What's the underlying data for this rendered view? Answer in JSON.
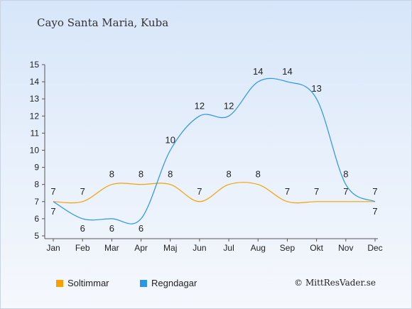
{
  "title": "Cayo Santa Maria, Kuba",
  "credit": "© MittResVader.se",
  "chart_data": {
    "type": "line",
    "categories": [
      "Jan",
      "Feb",
      "Mar",
      "Apr",
      "Maj",
      "Jun",
      "Jul",
      "Aug",
      "Sep",
      "Okt",
      "Nov",
      "Dec"
    ],
    "ylim": [
      5,
      15
    ],
    "yticks": [
      5,
      6,
      7,
      8,
      9,
      10,
      11,
      12,
      13,
      14,
      15
    ],
    "grid": false,
    "legend_position": "bottom-left",
    "series": [
      {
        "name": "Soltimmar",
        "color": "#f5a100",
        "values": [
          7,
          7,
          8,
          8,
          8,
          7,
          8,
          8,
          7,
          7,
          7,
          7
        ]
      },
      {
        "name": "Regndagar",
        "color": "#2b95e8",
        "values": [
          7,
          6,
          6,
          6,
          10,
          12,
          12,
          14,
          14,
          13,
          8,
          7
        ]
      }
    ]
  }
}
